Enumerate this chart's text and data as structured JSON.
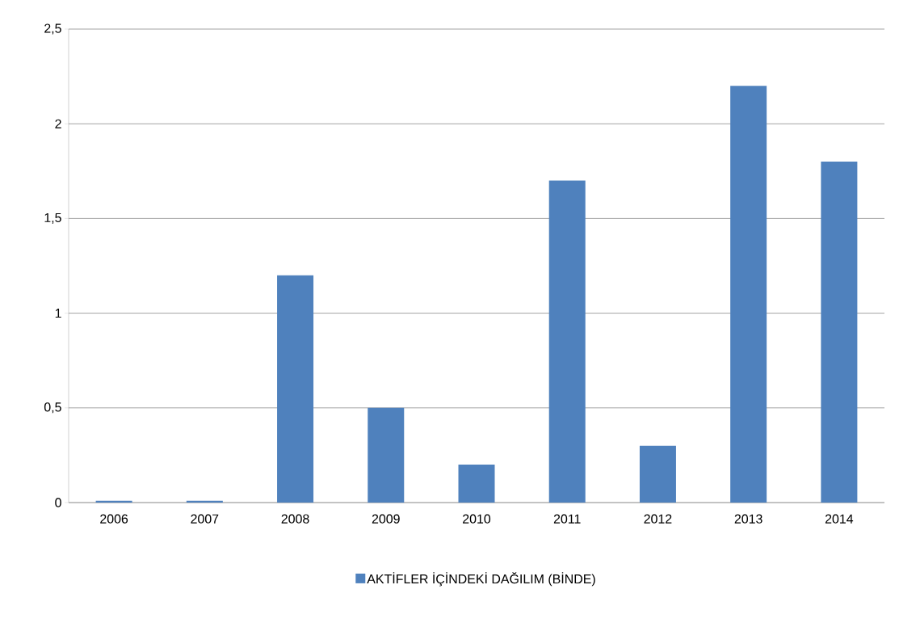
{
  "chart_data": {
    "type": "bar",
    "categories": [
      "2006",
      "2007",
      "2008",
      "2009",
      "2010",
      "2011",
      "2012",
      "2013",
      "2014"
    ],
    "series": [
      {
        "name": "AKTİFLER İÇİNDEKİ DAĞILIM (BİNDE)",
        "color": "#4f81bd",
        "values": [
          0.01,
          0.01,
          1.2,
          0.5,
          0.2,
          1.7,
          0.3,
          2.2,
          1.8
        ]
      }
    ],
    "ylim": [
      0,
      2.5
    ],
    "yticks": [
      0,
      {
        "value": 0.5,
        "label": "0,5"
      },
      1,
      {
        "value": 1.5,
        "label": "1,5"
      },
      2,
      {
        "value": 2.5,
        "label": "2,5"
      }
    ],
    "grid": "y",
    "legend": "bottom"
  }
}
